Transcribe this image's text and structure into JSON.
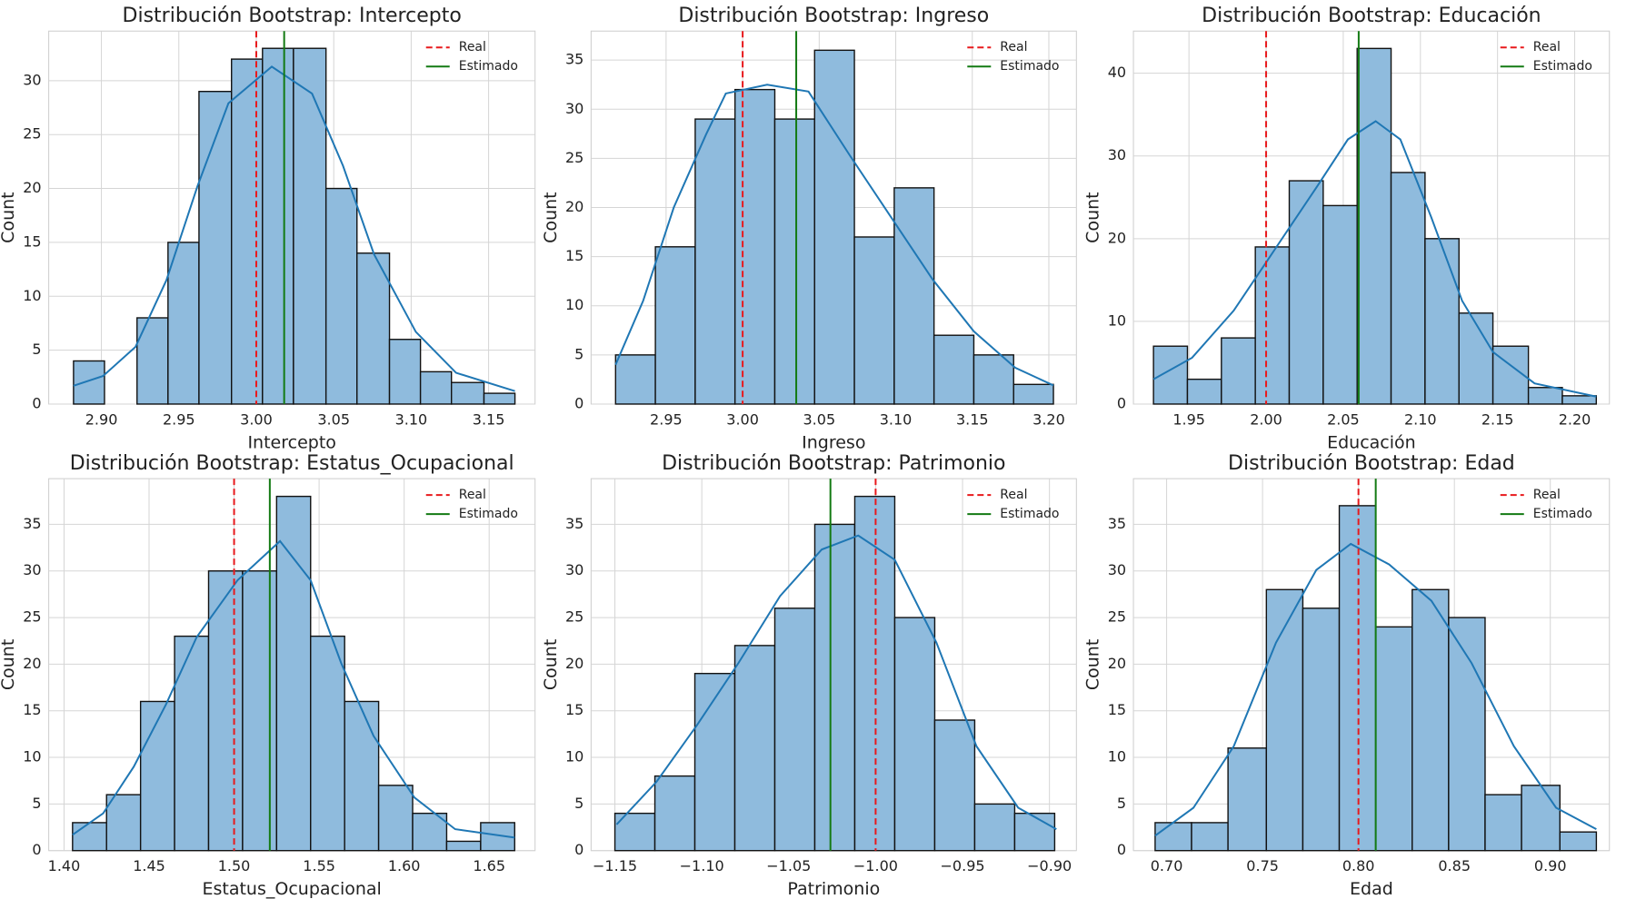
{
  "chart_data": [
    {
      "type": "histogram",
      "title": "Distribución Bootstrap: Intercepto",
      "xlabel": "Intercepto",
      "ylabel": "Count",
      "bins": [
        2.882,
        2.902,
        2.923,
        2.943,
        2.963,
        2.984,
        3.004,
        3.024,
        3.045,
        3.065,
        3.086,
        3.106,
        3.126,
        3.147,
        3.167
      ],
      "values": [
        4,
        0,
        8,
        15,
        29,
        32,
        33,
        33,
        20,
        14,
        6,
        3,
        2,
        1
      ],
      "color": "#8fbbdd",
      "kde": {
        "color": "#1f77b4",
        "x": [
          2.882,
          2.901,
          2.922,
          2.942,
          2.962,
          2.982,
          3.01,
          3.036,
          3.056,
          3.076,
          3.103,
          3.129,
          3.167
        ],
        "y": [
          1.7,
          2.6,
          5.3,
          11.5,
          20.2,
          27.9,
          31.3,
          28.8,
          22.1,
          13.9,
          6.7,
          2.9,
          1.2
        ]
      },
      "lines": [
        {
          "name": "Real",
          "color": "#e8191c",
          "style": "dashed",
          "x": 3.0
        },
        {
          "name": "Estimado",
          "color": "#137a13",
          "style": "solid",
          "x": 3.018
        }
      ],
      "xlim": [
        2.866,
        3.18
      ],
      "ylim": [
        0,
        34.6
      ],
      "xticks": [
        {
          "value": 2.9,
          "label": "2.90"
        },
        2.95,
        {
          "value": 3.0,
          "label": "3.00"
        },
        3.05,
        {
          "value": 3.1,
          "label": "3.10"
        },
        3.15
      ],
      "yticks": [
        0,
        5,
        10,
        15,
        20,
        25,
        30
      ],
      "grid": true,
      "legend": "upper right"
    },
    {
      "type": "histogram",
      "title": "Distribución Bootstrap: Ingreso",
      "xlabel": "Ingreso",
      "ylabel": "Count",
      "bins": [
        2.917,
        2.943,
        2.969,
        2.995,
        3.021,
        3.047,
        3.073,
        3.099,
        3.125,
        3.151,
        3.177,
        3.203
      ],
      "values": [
        5,
        16,
        29,
        32,
        29,
        36,
        17,
        22,
        7,
        5,
        2
      ],
      "color": "#8fbbdd",
      "kde": {
        "color": "#1f77b4",
        "x": [
          2.917,
          2.935,
          2.955,
          2.976,
          2.989,
          3.016,
          3.043,
          3.07,
          3.097,
          3.124,
          3.151,
          3.178,
          3.203
        ],
        "y": [
          4.0,
          10.5,
          20.0,
          27.4,
          31.6,
          32.5,
          31.8,
          25.3,
          19.0,
          12.7,
          7.4,
          3.7,
          1.9
        ]
      },
      "lines": [
        {
          "name": "Real",
          "color": "#e8191c",
          "style": "dashed",
          "x": 3.0
        },
        {
          "name": "Estimado",
          "color": "#137a13",
          "style": "solid",
          "x": 3.035
        }
      ],
      "xlim": [
        2.901,
        3.218
      ],
      "ylim": [
        0,
        37.95
      ],
      "xticks": [
        2.95,
        {
          "value": 3.0,
          "label": "3.00"
        },
        3.05,
        {
          "value": 3.1,
          "label": "3.10"
        },
        3.15,
        {
          "value": 3.2,
          "label": "3.20"
        }
      ],
      "yticks": [
        0,
        5,
        10,
        15,
        20,
        25,
        30,
        35
      ],
      "grid": true,
      "legend": "upper right"
    },
    {
      "type": "histogram",
      "title": "Distribución Bootstrap: Educación",
      "xlabel": "Educación",
      "ylabel": "Count",
      "bins": [
        1.927,
        1.949,
        1.971,
        1.993,
        2.015,
        2.037,
        2.059,
        2.081,
        2.103,
        2.125,
        2.147,
        2.17,
        2.192,
        2.214
      ],
      "values": [
        7,
        3,
        8,
        19,
        27,
        24,
        43,
        28,
        20,
        11,
        7,
        2,
        1
      ],
      "color": "#8fbbdd",
      "kde": {
        "color": "#1f77b4",
        "x": [
          1.927,
          1.952,
          1.979,
          2.006,
          2.033,
          2.053,
          2.071,
          2.087,
          2.107,
          2.127,
          2.147,
          2.174,
          2.214
        ],
        "y": [
          3.0,
          5.6,
          11.3,
          18.8,
          26.3,
          32.0,
          34.2,
          32.0,
          22.6,
          12.5,
          6.3,
          2.5,
          0.9
        ]
      },
      "lines": [
        {
          "name": "Real",
          "color": "#e8191c",
          "style": "dashed",
          "x": 2.0
        },
        {
          "name": "Estimado",
          "color": "#137a13",
          "style": "solid",
          "x": 2.06
        }
      ],
      "xlim": [
        1.914,
        2.2225
      ],
      "ylim": [
        0,
        45.1
      ],
      "xticks": [
        1.95,
        {
          "value": 2.0,
          "label": "2.00"
        },
        2.05,
        {
          "value": 2.1,
          "label": "2.10"
        },
        2.15,
        {
          "value": 2.2,
          "label": "2.20"
        }
      ],
      "yticks": [
        0,
        10,
        20,
        30,
        40
      ],
      "grid": true,
      "legend": "upper right"
    },
    {
      "type": "histogram",
      "title": "Distribución Bootstrap: Estatus_Ocupacional",
      "xlabel": "Estatus_Ocupacional",
      "ylabel": "Count",
      "bins": [
        1.405,
        1.425,
        1.445,
        1.465,
        1.485,
        1.505,
        1.525,
        1.545,
        1.565,
        1.585,
        1.605,
        1.625,
        1.645,
        1.665
      ],
      "values": [
        3,
        6,
        16,
        23,
        30,
        30,
        38,
        23,
        16,
        7,
        4,
        1,
        3
      ],
      "color": "#8fbbdd",
      "kde": {
        "color": "#1f77b4",
        "x": [
          1.405,
          1.423,
          1.441,
          1.46,
          1.478,
          1.502,
          1.527,
          1.545,
          1.563,
          1.582,
          1.606,
          1.63,
          1.665
        ],
        "y": [
          1.7,
          4.0,
          9.0,
          15.7,
          22.9,
          29.0,
          33.2,
          29.0,
          20.1,
          12.3,
          5.7,
          2.3,
          1.4
        ]
      },
      "lines": [
        {
          "name": "Real",
          "color": "#e8191c",
          "style": "dashed",
          "x": 1.5
        },
        {
          "name": "Estimado",
          "color": "#137a13",
          "style": "solid",
          "x": 1.521
        }
      ],
      "xlim": [
        1.391,
        1.677
      ],
      "ylim": [
        0,
        39.9
      ],
      "xticks": [
        {
          "value": 1.4,
          "label": "1.40"
        },
        1.45,
        {
          "value": 1.5,
          "label": "1.50"
        },
        1.55,
        {
          "value": 1.6,
          "label": "1.60"
        },
        1.65
      ],
      "yticks": [
        0,
        5,
        10,
        15,
        20,
        25,
        30,
        35
      ],
      "grid": true,
      "legend": "upper right"
    },
    {
      "type": "histogram",
      "title": "Distribución Bootstrap: Patrimonio",
      "xlabel": "Patrimonio",
      "ylabel": "Count",
      "bins": [
        -1.15,
        -1.127,
        -1.104,
        -1.081,
        -1.058,
        -1.035,
        -1.012,
        -0.989,
        -0.966,
        -0.943,
        -0.92,
        -0.897
      ],
      "values": [
        4,
        8,
        19,
        22,
        26,
        35,
        38,
        25,
        14,
        5,
        4
      ],
      "color": "#8fbbdd",
      "kde": {
        "color": "#1f77b4",
        "x": [
          -1.149,
          -1.126,
          -1.103,
          -1.079,
          -1.055,
          -1.031,
          -1.01,
          -0.989,
          -0.965,
          -0.942,
          -0.918,
          -0.896
        ],
        "y": [
          2.8,
          7.4,
          13.4,
          20.1,
          27.3,
          32.3,
          33.8,
          31.2,
          22.3,
          11.2,
          4.6,
          2.3
        ]
      },
      "lines": [
        {
          "name": "Real",
          "color": "#e8191c",
          "style": "dashed",
          "x": -1.0
        },
        {
          "name": "Estimado",
          "color": "#137a13",
          "style": "solid",
          "x": -1.026
        }
      ],
      "xlim": [
        -1.1637,
        -0.8845
      ],
      "ylim": [
        0,
        39.9
      ],
      "xticks": [
        {
          "value": -1.15,
          "label": "−1.15"
        },
        {
          "value": -1.1,
          "label": "−1.10"
        },
        {
          "value": -1.05,
          "label": "−1.05"
        },
        {
          "value": -1.0,
          "label": "−1.00"
        },
        {
          "value": -0.95,
          "label": "−0.95"
        },
        {
          "value": -0.9,
          "label": "−0.90"
        }
      ],
      "yticks": [
        0,
        5,
        10,
        15,
        20,
        25,
        30,
        35
      ],
      "grid": true,
      "legend": "upper right"
    },
    {
      "type": "histogram",
      "title": "Distribución Bootstrap: Edad",
      "xlabel": "Edad",
      "ylabel": "Count",
      "bins": [
        0.694,
        0.713,
        0.732,
        0.752,
        0.771,
        0.79,
        0.809,
        0.828,
        0.847,
        0.866,
        0.885,
        0.905,
        0.924
      ],
      "values": [
        3,
        3,
        11,
        28,
        26,
        37,
        24,
        28,
        25,
        6,
        7,
        2
      ],
      "color": "#8fbbdd",
      "kde": {
        "color": "#1f77b4",
        "x": [
          0.694,
          0.714,
          0.735,
          0.757,
          0.778,
          0.796,
          0.816,
          0.838,
          0.859,
          0.881,
          0.903,
          0.924
        ],
        "y": [
          1.6,
          4.6,
          11.2,
          22.3,
          30.1,
          32.9,
          30.7,
          26.8,
          20.1,
          11.2,
          4.6,
          2.3
        ]
      },
      "lines": [
        {
          "name": "Real",
          "color": "#e8191c",
          "style": "dashed",
          "x": 0.8
        },
        {
          "name": "Estimado",
          "color": "#137a13",
          "style": "solid",
          "x": 0.809
        }
      ],
      "xlim": [
        0.6827,
        0.9308
      ],
      "ylim": [
        0,
        39.9
      ],
      "xticks": [
        {
          "value": 0.7,
          "label": "0.70"
        },
        0.75,
        {
          "value": 0.8,
          "label": "0.80"
        },
        0.85,
        {
          "value": 0.9,
          "label": "0.90"
        }
      ],
      "yticks": [
        0,
        5,
        10,
        15,
        20,
        25,
        30,
        35
      ],
      "grid": true,
      "legend": "upper right"
    }
  ]
}
